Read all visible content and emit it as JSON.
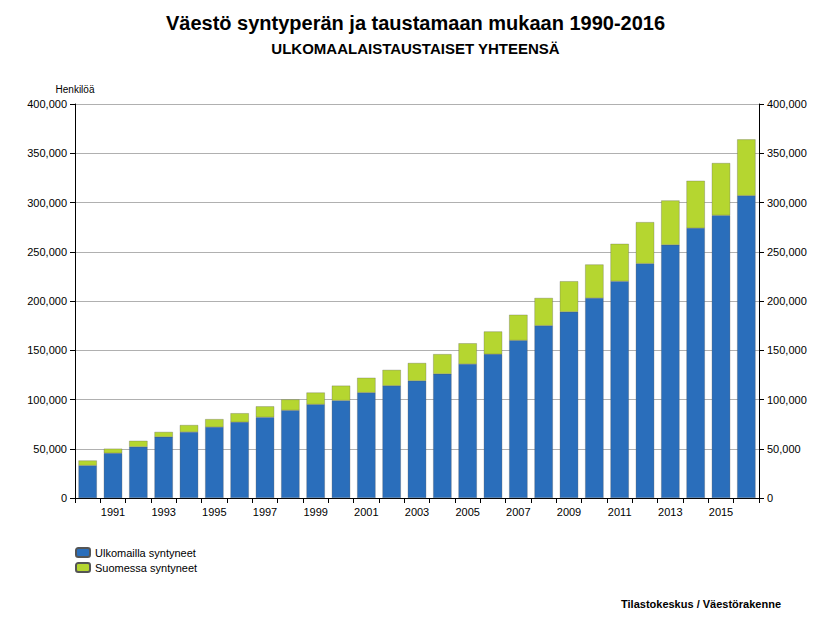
{
  "chart_data": {
    "type": "bar",
    "title": "Väestö syntyperän ja taustamaan mukaan 1990-2016",
    "subtitle": "ULKOMAALAISTAUSTAISET YHTEENSÄ",
    "y_label": "Henkilöä",
    "annotations": [
      "Tilastokeskus / Väestörakenne"
    ],
    "stacked": true,
    "grid": true,
    "legend": "bottom-left",
    "categories": [
      null,
      "1991",
      null,
      "1993",
      null,
      "1995",
      null,
      "1997",
      null,
      "1999",
      null,
      "2001",
      null,
      "2003",
      null,
      "2005",
      null,
      "2007",
      null,
      "2009",
      null,
      "2011",
      null,
      "2013",
      null,
      "2015",
      null
    ],
    "series": [
      {
        "name": "Ulkomailla syntyneet",
        "color": "#2a6ebb",
        "values": [
          33000,
          45500,
          52000,
          62000,
          67000,
          72000,
          77000,
          82000,
          89000,
          95000,
          99000,
          107000,
          114000,
          119000,
          126000,
          136000,
          146000,
          160000,
          175000,
          189000,
          203000,
          220000,
          238000,
          257000,
          274000,
          287000,
          307000
        ]
      },
      {
        "name": "Suomessa syntyneet",
        "color": "#b5d630",
        "values": [
          5000,
          4500,
          6000,
          5000,
          7000,
          8000,
          9000,
          11000,
          11000,
          12000,
          15000,
          15000,
          16000,
          18000,
          20000,
          21000,
          23000,
          26000,
          28000,
          31000,
          34000,
          38000,
          42000,
          45000,
          48000,
          53000,
          57000
        ]
      }
    ],
    "ylim": [
      0,
      400000
    ],
    "yticks": [
      0,
      {
        "value": 50000,
        "label": "50,000"
      },
      {
        "value": 100000,
        "label": "100,000"
      },
      {
        "value": 150000,
        "label": "150,000"
      },
      {
        "value": 200000,
        "label": "200,000"
      },
      {
        "value": 250000,
        "label": "250,000"
      },
      {
        "value": 300000,
        "label": "300,000"
      },
      {
        "value": 350000,
        "label": "350,000"
      },
      {
        "value": 400000,
        "label": "400,000"
      }
    ],
    "y2lim": [
      0,
      400000
    ],
    "y2ticks": [
      0,
      {
        "value": 50000,
        "label": "50,000"
      },
      {
        "value": 100000,
        "label": "100,000"
      },
      {
        "value": 150000,
        "label": "150,000"
      },
      {
        "value": 200000,
        "label": "200,000"
      },
      {
        "value": 250000,
        "label": "250,000"
      },
      {
        "value": 300000,
        "label": "300,000"
      },
      {
        "value": 350000,
        "label": "350,000"
      },
      {
        "value": 400000,
        "label": "400,000"
      }
    ]
  }
}
